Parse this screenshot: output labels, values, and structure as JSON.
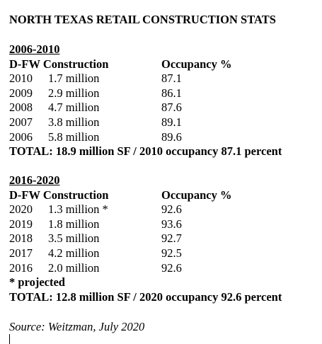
{
  "title": "NORTH TEXAS RETAIL CONSTRUCTION STATS",
  "sections": [
    {
      "heading": "2006-2010",
      "columns": [
        "D-FW Construction",
        "Occupancy %"
      ],
      "rows": [
        [
          "2010",
          "1.7 million",
          "87.1"
        ],
        [
          "2009",
          "2.9 million",
          "86.1"
        ],
        [
          "2008",
          "4.7 million",
          "87.6"
        ],
        [
          "2007",
          "3.8 million",
          "89.1"
        ],
        [
          "2006",
          "5.8 million",
          "89.6"
        ]
      ],
      "total": "TOTAL: 18.9 million SF / 2010 occupancy 87.1 percent"
    },
    {
      "heading": "2016-2020",
      "columns": [
        "D-FW Construction",
        "Occupancy %"
      ],
      "rows": [
        [
          "2020",
          "1.3 million *",
          "92.6"
        ],
        [
          "2019",
          "1.8 million",
          "93.6"
        ],
        [
          "2018",
          "3.5 million",
          "92.7"
        ],
        [
          "2017",
          "4.2 million",
          "92.5"
        ],
        [
          "2016",
          "2.0 million",
          "92.6"
        ]
      ],
      "note": "* projected",
      "total": "TOTAL: 12.8 million SF / 2020 occupancy 92.6 percent"
    }
  ],
  "source": "Source: Weitzman, July 2020"
}
